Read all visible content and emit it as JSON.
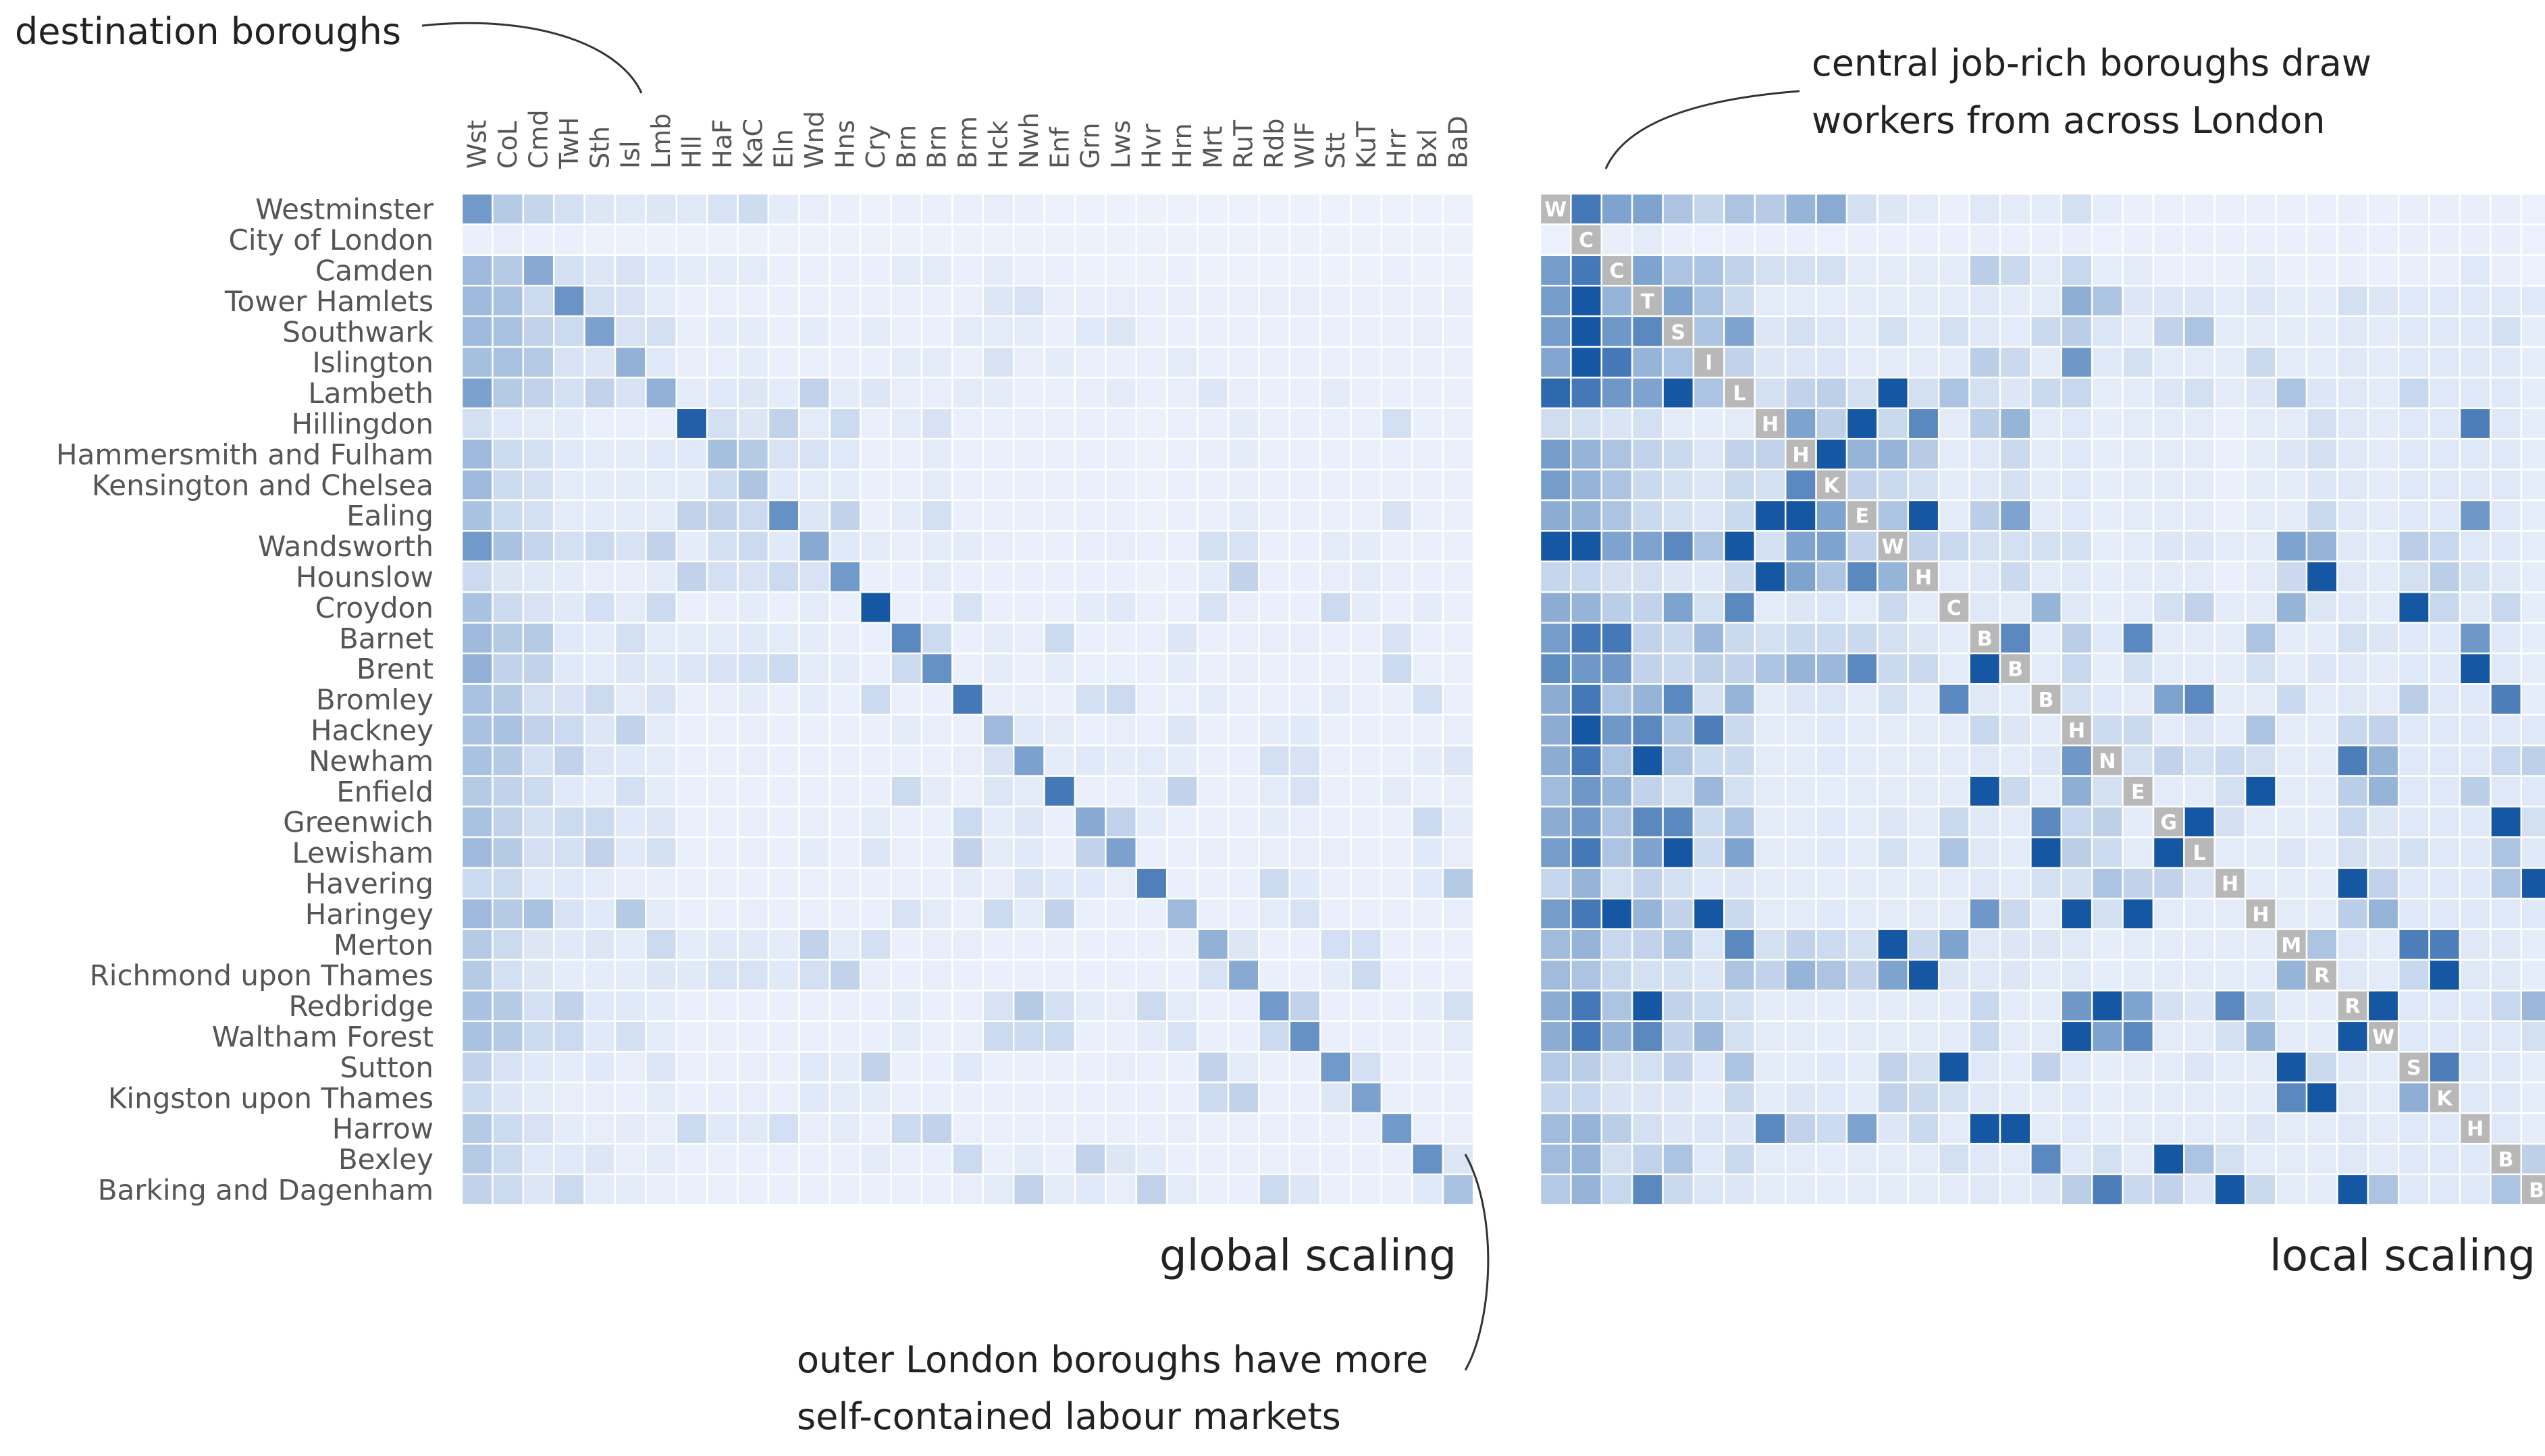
{
  "chart_data": {
    "type": "heatmap",
    "title": "",
    "xlabel": "",
    "ylabel": "",
    "rows": [
      "Westminster",
      "City of London",
      "Camden",
      "Tower Hamlets",
      "Southwark",
      "Islington",
      "Lambeth",
      "Hillingdon",
      "Hammersmith and Fulham",
      "Kensington and Chelsea",
      "Ealing",
      "Wandsworth",
      "Hounslow",
      "Croydon",
      "Barnet",
      "Brent",
      "Bromley",
      "Hackney",
      "Newham",
      "Enfield",
      "Greenwich",
      "Lewisham",
      "Havering",
      "Haringey",
      "Merton",
      "Richmond upon Thames",
      "Redbridge",
      "Waltham Forest",
      "Sutton",
      "Kingston upon Thames",
      "Harrow",
      "Bexley",
      "Barking and Dagenham"
    ],
    "columns": [
      "Wst",
      "CoL",
      "Cmd",
      "TwH",
      "Sth",
      "Isl",
      "Lmb",
      "Hll",
      "HaF",
      "KaC",
      "Eln",
      "Wnd",
      "Hns",
      "Cry",
      "Brn",
      "Brn",
      "Brm",
      "Hck",
      "Nwh",
      "Enf",
      "Grn",
      "Lws",
      "Hvr",
      "Hrn",
      "Mrt",
      "RuT",
      "Rdb",
      "WlF",
      "Stt",
      "KuT",
      "Hrr",
      "Bxl",
      "BaD"
    ],
    "diagonal_labels": [
      "W",
      "C",
      "C",
      "T",
      "S",
      "I",
      "L",
      "H",
      "H",
      "K",
      "E",
      "W",
      "H",
      "C",
      "B",
      "B",
      "B",
      "H",
      "N",
      "E",
      "G",
      "L",
      "H",
      "H",
      "M",
      "R",
      "R",
      "W",
      "S",
      "K",
      "H",
      "B",
      "B"
    ],
    "color_scale": {
      "low": "#eef3fd",
      "high": "#0b4f9e",
      "diagonal_local": "#b8b8b8"
    },
    "panels": [
      {
        "id": "global",
        "label": "global scaling"
      },
      {
        "id": "local",
        "label": "local scaling"
      }
    ],
    "global_values": [
      [
        0.55,
        0.25,
        0.18,
        0.12,
        0.08,
        0.07,
        0.08,
        0.07,
        0.1,
        0.14,
        0.04,
        0.03,
        0.02,
        0.01,
        0.02,
        0.02,
        0.02,
        0.03,
        0.02,
        0.01,
        0.01,
        0.01,
        0.01,
        0.01,
        0.01,
        0.01,
        0.01,
        0.01,
        0.01,
        0.01,
        0.01,
        0.01,
        0.01
      ],
      [
        0.02,
        0.03,
        0.02,
        0.02,
        0.01,
        0.01,
        0.01,
        0.01,
        0.01,
        0.01,
        0.01,
        0.01,
        0.01,
        0.01,
        0.01,
        0.01,
        0.01,
        0.01,
        0.01,
        0.01,
        0.01,
        0.01,
        0.01,
        0.01,
        0.01,
        0.01,
        0.01,
        0.01,
        0.01,
        0.01,
        0.01,
        0.01,
        0.01
      ],
      [
        0.35,
        0.25,
        0.45,
        0.12,
        0.08,
        0.1,
        0.06,
        0.04,
        0.04,
        0.05,
        0.02,
        0.02,
        0.02,
        0.02,
        0.05,
        0.05,
        0.02,
        0.04,
        0.02,
        0.02,
        0.01,
        0.01,
        0.01,
        0.02,
        0.01,
        0.01,
        0.01,
        0.01,
        0.01,
        0.01,
        0.02,
        0.01,
        0.01
      ],
      [
        0.35,
        0.3,
        0.15,
        0.58,
        0.12,
        0.1,
        0.05,
        0.02,
        0.02,
        0.02,
        0.02,
        0.02,
        0.02,
        0.02,
        0.02,
        0.02,
        0.02,
        0.08,
        0.1,
        0.03,
        0.03,
        0.03,
        0.02,
        0.03,
        0.02,
        0.02,
        0.03,
        0.03,
        0.02,
        0.02,
        0.02,
        0.02,
        0.03
      ],
      [
        0.35,
        0.3,
        0.2,
        0.15,
        0.5,
        0.1,
        0.12,
        0.03,
        0.04,
        0.04,
        0.02,
        0.04,
        0.02,
        0.04,
        0.02,
        0.02,
        0.05,
        0.05,
        0.04,
        0.02,
        0.06,
        0.08,
        0.02,
        0.02,
        0.02,
        0.02,
        0.02,
        0.02,
        0.02,
        0.02,
        0.02,
        0.03,
        0.02
      ],
      [
        0.32,
        0.3,
        0.25,
        0.1,
        0.08,
        0.4,
        0.06,
        0.03,
        0.03,
        0.04,
        0.02,
        0.02,
        0.02,
        0.02,
        0.05,
        0.05,
        0.02,
        0.1,
        0.03,
        0.04,
        0.02,
        0.02,
        0.02,
        0.05,
        0.02,
        0.02,
        0.02,
        0.02,
        0.02,
        0.02,
        0.02,
        0.02,
        0.02
      ],
      [
        0.5,
        0.25,
        0.2,
        0.12,
        0.2,
        0.1,
        0.4,
        0.04,
        0.06,
        0.08,
        0.04,
        0.2,
        0.04,
        0.08,
        0.03,
        0.03,
        0.05,
        0.04,
        0.02,
        0.02,
        0.03,
        0.04,
        0.02,
        0.03,
        0.08,
        0.03,
        0.02,
        0.02,
        0.04,
        0.02,
        0.02,
        0.02,
        0.02
      ],
      [
        0.12,
        0.06,
        0.05,
        0.04,
        0.02,
        0.02,
        0.02,
        0.9,
        0.12,
        0.08,
        0.2,
        0.05,
        0.15,
        0.02,
        0.05,
        0.1,
        0.02,
        0.02,
        0.02,
        0.02,
        0.02,
        0.02,
        0.01,
        0.02,
        0.02,
        0.04,
        0.02,
        0.02,
        0.02,
        0.02,
        0.12,
        0.02,
        0.02
      ],
      [
        0.35,
        0.15,
        0.12,
        0.06,
        0.05,
        0.04,
        0.06,
        0.06,
        0.32,
        0.25,
        0.1,
        0.1,
        0.07,
        0.02,
        0.02,
        0.05,
        0.02,
        0.02,
        0.02,
        0.02,
        0.02,
        0.02,
        0.01,
        0.02,
        0.03,
        0.04,
        0.02,
        0.02,
        0.02,
        0.02,
        0.02,
        0.02,
        0.02
      ],
      [
        0.35,
        0.15,
        0.12,
        0.05,
        0.04,
        0.04,
        0.05,
        0.04,
        0.15,
        0.28,
        0.06,
        0.05,
        0.04,
        0.02,
        0.02,
        0.04,
        0.02,
        0.02,
        0.02,
        0.02,
        0.02,
        0.02,
        0.01,
        0.02,
        0.02,
        0.03,
        0.02,
        0.02,
        0.02,
        0.02,
        0.02,
        0.02,
        0.02
      ],
      [
        0.3,
        0.15,
        0.12,
        0.05,
        0.04,
        0.04,
        0.05,
        0.2,
        0.2,
        0.15,
        0.6,
        0.08,
        0.2,
        0.02,
        0.05,
        0.12,
        0.02,
        0.02,
        0.02,
        0.02,
        0.02,
        0.02,
        0.01,
        0.02,
        0.02,
        0.05,
        0.02,
        0.02,
        0.02,
        0.02,
        0.1,
        0.02,
        0.02
      ],
      [
        0.55,
        0.3,
        0.18,
        0.12,
        0.15,
        0.1,
        0.2,
        0.04,
        0.12,
        0.15,
        0.06,
        0.45,
        0.06,
        0.05,
        0.03,
        0.04,
        0.04,
        0.03,
        0.02,
        0.02,
        0.03,
        0.03,
        0.02,
        0.02,
        0.12,
        0.1,
        0.02,
        0.02,
        0.05,
        0.04,
        0.02,
        0.02,
        0.02
      ],
      [
        0.15,
        0.08,
        0.06,
        0.04,
        0.03,
        0.03,
        0.05,
        0.2,
        0.12,
        0.1,
        0.15,
        0.1,
        0.55,
        0.02,
        0.02,
        0.05,
        0.02,
        0.02,
        0.02,
        0.02,
        0.02,
        0.02,
        0.01,
        0.02,
        0.05,
        0.2,
        0.02,
        0.02,
        0.03,
        0.05,
        0.03,
        0.02,
        0.02
      ],
      [
        0.3,
        0.15,
        0.1,
        0.06,
        0.12,
        0.05,
        0.15,
        0.02,
        0.03,
        0.04,
        0.02,
        0.05,
        0.02,
        0.95,
        0.02,
        0.02,
        0.1,
        0.02,
        0.02,
        0.02,
        0.04,
        0.06,
        0.02,
        0.02,
        0.1,
        0.03,
        0.02,
        0.02,
        0.15,
        0.04,
        0.02,
        0.04,
        0.02
      ],
      [
        0.35,
        0.25,
        0.25,
        0.06,
        0.05,
        0.12,
        0.05,
        0.04,
        0.05,
        0.06,
        0.05,
        0.04,
        0.03,
        0.02,
        0.65,
        0.15,
        0.02,
        0.05,
        0.03,
        0.15,
        0.02,
        0.02,
        0.02,
        0.08,
        0.02,
        0.02,
        0.03,
        0.03,
        0.02,
        0.02,
        0.1,
        0.02,
        0.02
      ],
      [
        0.4,
        0.2,
        0.2,
        0.06,
        0.05,
        0.08,
        0.06,
        0.08,
        0.1,
        0.12,
        0.15,
        0.05,
        0.05,
        0.02,
        0.15,
        0.6,
        0.02,
        0.04,
        0.02,
        0.04,
        0.02,
        0.02,
        0.02,
        0.04,
        0.02,
        0.03,
        0.02,
        0.02,
        0.02,
        0.02,
        0.15,
        0.02,
        0.02
      ],
      [
        0.3,
        0.25,
        0.12,
        0.1,
        0.15,
        0.05,
        0.1,
        0.02,
        0.03,
        0.04,
        0.02,
        0.04,
        0.02,
        0.15,
        0.02,
        0.02,
        0.75,
        0.03,
        0.03,
        0.02,
        0.12,
        0.15,
        0.02,
        0.02,
        0.05,
        0.02,
        0.02,
        0.02,
        0.05,
        0.02,
        0.02,
        0.12,
        0.02
      ],
      [
        0.3,
        0.3,
        0.2,
        0.15,
        0.08,
        0.2,
        0.05,
        0.02,
        0.02,
        0.03,
        0.02,
        0.02,
        0.02,
        0.02,
        0.04,
        0.03,
        0.02,
        0.35,
        0.06,
        0.05,
        0.02,
        0.03,
        0.02,
        0.08,
        0.02,
        0.02,
        0.04,
        0.06,
        0.02,
        0.02,
        0.02,
        0.02,
        0.03
      ],
      [
        0.3,
        0.25,
        0.12,
        0.2,
        0.08,
        0.06,
        0.05,
        0.02,
        0.02,
        0.03,
        0.02,
        0.02,
        0.02,
        0.02,
        0.02,
        0.02,
        0.03,
        0.1,
        0.5,
        0.04,
        0.06,
        0.04,
        0.05,
        0.04,
        0.02,
        0.02,
        0.12,
        0.1,
        0.02,
        0.02,
        0.02,
        0.04,
        0.08
      ],
      [
        0.25,
        0.2,
        0.15,
        0.06,
        0.04,
        0.12,
        0.04,
        0.02,
        0.02,
        0.02,
        0.02,
        0.02,
        0.02,
        0.02,
        0.15,
        0.05,
        0.02,
        0.08,
        0.05,
        0.75,
        0.02,
        0.02,
        0.04,
        0.2,
        0.02,
        0.02,
        0.05,
        0.1,
        0.02,
        0.02,
        0.05,
        0.02,
        0.03
      ],
      [
        0.3,
        0.2,
        0.12,
        0.15,
        0.15,
        0.06,
        0.08,
        0.02,
        0.02,
        0.03,
        0.02,
        0.03,
        0.02,
        0.05,
        0.02,
        0.02,
        0.15,
        0.04,
        0.08,
        0.02,
        0.45,
        0.2,
        0.04,
        0.02,
        0.02,
        0.02,
        0.04,
        0.03,
        0.02,
        0.02,
        0.02,
        0.15,
        0.05
      ],
      [
        0.35,
        0.25,
        0.12,
        0.12,
        0.2,
        0.06,
        0.12,
        0.02,
        0.02,
        0.03,
        0.02,
        0.04,
        0.02,
        0.08,
        0.02,
        0.02,
        0.2,
        0.05,
        0.06,
        0.02,
        0.2,
        0.5,
        0.02,
        0.02,
        0.03,
        0.02,
        0.03,
        0.03,
        0.03,
        0.02,
        0.02,
        0.06,
        0.03
      ],
      [
        0.15,
        0.15,
        0.06,
        0.06,
        0.04,
        0.03,
        0.03,
        0.02,
        0.02,
        0.02,
        0.02,
        0.02,
        0.02,
        0.02,
        0.02,
        0.02,
        0.04,
        0.03,
        0.1,
        0.06,
        0.06,
        0.03,
        0.7,
        0.02,
        0.02,
        0.02,
        0.15,
        0.06,
        0.02,
        0.02,
        0.02,
        0.06,
        0.25
      ],
      [
        0.35,
        0.25,
        0.3,
        0.1,
        0.06,
        0.25,
        0.05,
        0.02,
        0.02,
        0.03,
        0.02,
        0.02,
        0.02,
        0.02,
        0.1,
        0.05,
        0.02,
        0.15,
        0.05,
        0.2,
        0.02,
        0.02,
        0.02,
        0.35,
        0.02,
        0.02,
        0.05,
        0.1,
        0.02,
        0.02,
        0.02,
        0.02,
        0.03
      ],
      [
        0.25,
        0.15,
        0.08,
        0.06,
        0.08,
        0.04,
        0.15,
        0.04,
        0.06,
        0.06,
        0.04,
        0.2,
        0.05,
        0.12,
        0.02,
        0.03,
        0.03,
        0.02,
        0.02,
        0.02,
        0.02,
        0.02,
        0.02,
        0.02,
        0.4,
        0.08,
        0.02,
        0.02,
        0.12,
        0.12,
        0.02,
        0.02,
        0.02
      ],
      [
        0.25,
        0.12,
        0.08,
        0.04,
        0.04,
        0.04,
        0.08,
        0.06,
        0.1,
        0.1,
        0.06,
        0.12,
        0.2,
        0.03,
        0.02,
        0.03,
        0.02,
        0.02,
        0.02,
        0.02,
        0.02,
        0.02,
        0.02,
        0.02,
        0.1,
        0.45,
        0.02,
        0.02,
        0.04,
        0.15,
        0.02,
        0.02,
        0.02
      ],
      [
        0.3,
        0.25,
        0.12,
        0.2,
        0.06,
        0.06,
        0.04,
        0.02,
        0.02,
        0.02,
        0.02,
        0.02,
        0.02,
        0.02,
        0.04,
        0.02,
        0.02,
        0.1,
        0.25,
        0.12,
        0.04,
        0.03,
        0.15,
        0.05,
        0.02,
        0.02,
        0.55,
        0.2,
        0.02,
        0.02,
        0.02,
        0.04,
        0.12
      ],
      [
        0.3,
        0.25,
        0.15,
        0.15,
        0.06,
        0.12,
        0.04,
        0.02,
        0.02,
        0.02,
        0.02,
        0.02,
        0.02,
        0.02,
        0.04,
        0.02,
        0.02,
        0.15,
        0.15,
        0.15,
        0.02,
        0.02,
        0.04,
        0.1,
        0.02,
        0.02,
        0.15,
        0.6,
        0.02,
        0.02,
        0.02,
        0.02,
        0.05
      ],
      [
        0.2,
        0.1,
        0.06,
        0.04,
        0.06,
        0.03,
        0.08,
        0.02,
        0.02,
        0.03,
        0.02,
        0.06,
        0.04,
        0.2,
        0.02,
        0.02,
        0.06,
        0.02,
        0.02,
        0.02,
        0.02,
        0.03,
        0.02,
        0.02,
        0.2,
        0.05,
        0.02,
        0.02,
        0.55,
        0.12,
        0.02,
        0.02,
        0.02
      ],
      [
        0.15,
        0.08,
        0.05,
        0.03,
        0.03,
        0.02,
        0.05,
        0.02,
        0.03,
        0.03,
        0.02,
        0.06,
        0.05,
        0.04,
        0.02,
        0.02,
        0.02,
        0.02,
        0.02,
        0.02,
        0.02,
        0.02,
        0.02,
        0.02,
        0.15,
        0.2,
        0.02,
        0.02,
        0.08,
        0.5,
        0.02,
        0.02,
        0.02
      ],
      [
        0.25,
        0.15,
        0.1,
        0.04,
        0.03,
        0.04,
        0.03,
        0.15,
        0.06,
        0.06,
        0.12,
        0.03,
        0.05,
        0.02,
        0.15,
        0.2,
        0.02,
        0.02,
        0.02,
        0.02,
        0.02,
        0.02,
        0.02,
        0.03,
        0.02,
        0.02,
        0.02,
        0.02,
        0.02,
        0.02,
        0.55,
        0.02,
        0.02
      ],
      [
        0.25,
        0.15,
        0.06,
        0.06,
        0.08,
        0.03,
        0.05,
        0.02,
        0.02,
        0.02,
        0.02,
        0.02,
        0.02,
        0.04,
        0.02,
        0.02,
        0.15,
        0.02,
        0.05,
        0.02,
        0.2,
        0.08,
        0.04,
        0.02,
        0.02,
        0.02,
        0.02,
        0.02,
        0.02,
        0.02,
        0.02,
        0.6,
        0.08
      ],
      [
        0.2,
        0.15,
        0.08,
        0.15,
        0.05,
        0.04,
        0.03,
        0.02,
        0.02,
        0.02,
        0.02,
        0.02,
        0.02,
        0.02,
        0.02,
        0.02,
        0.03,
        0.05,
        0.2,
        0.05,
        0.06,
        0.03,
        0.2,
        0.05,
        0.02,
        0.02,
        0.15,
        0.08,
        0.02,
        0.02,
        0.02,
        0.06,
        0.3
      ]
    ],
    "annotations": [
      {
        "id": "dest",
        "text": "destination boroughs"
      },
      {
        "id": "central",
        "lines": [
          "central job-rich boroughs draw",
          "workers from across London"
        ]
      },
      {
        "id": "outer",
        "lines": [
          "outer London boroughs have more",
          "self-contained labour markets"
        ]
      }
    ]
  }
}
